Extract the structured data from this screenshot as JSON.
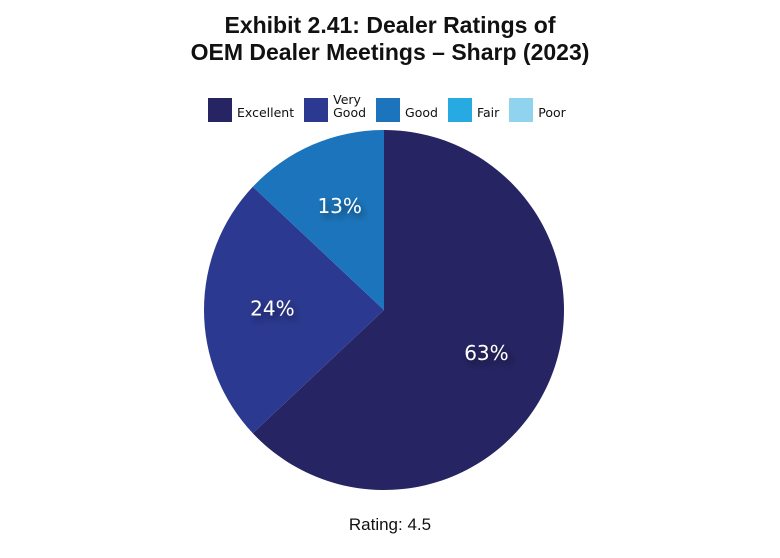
{
  "title": {
    "line1": "Exhibit 2.41: Dealer Ratings of",
    "line2": "OEM Dealer Meetings – Sharp (2023)"
  },
  "legend": [
    {
      "label_lines": [
        "Excellent"
      ],
      "color": "#262462"
    },
    {
      "label_lines": [
        "Very",
        "Good"
      ],
      "color": "#2b3990"
    },
    {
      "label_lines": [
        "Good"
      ],
      "color": "#1c75bc"
    },
    {
      "label_lines": [
        "Fair"
      ],
      "color": "#27aae1"
    },
    {
      "label_lines": [
        "Poor"
      ],
      "color": "#8fd3ee"
    }
  ],
  "footer": {
    "rating": "Rating: 4.5"
  },
  "chart_data": {
    "type": "pie",
    "title": "Exhibit 2.41: Dealer Ratings of OEM Dealer Meetings – Sharp (2023)",
    "categories": [
      "Excellent",
      "Very Good",
      "Good",
      "Fair",
      "Poor"
    ],
    "values": [
      63,
      24,
      13,
      0,
      0
    ],
    "labels": [
      "63%",
      "24%",
      "13%",
      "",
      ""
    ],
    "colors": [
      "#262462",
      "#2b3990",
      "#1c75bc",
      "#27aae1",
      "#8fd3ee"
    ],
    "legend_position": "top"
  }
}
